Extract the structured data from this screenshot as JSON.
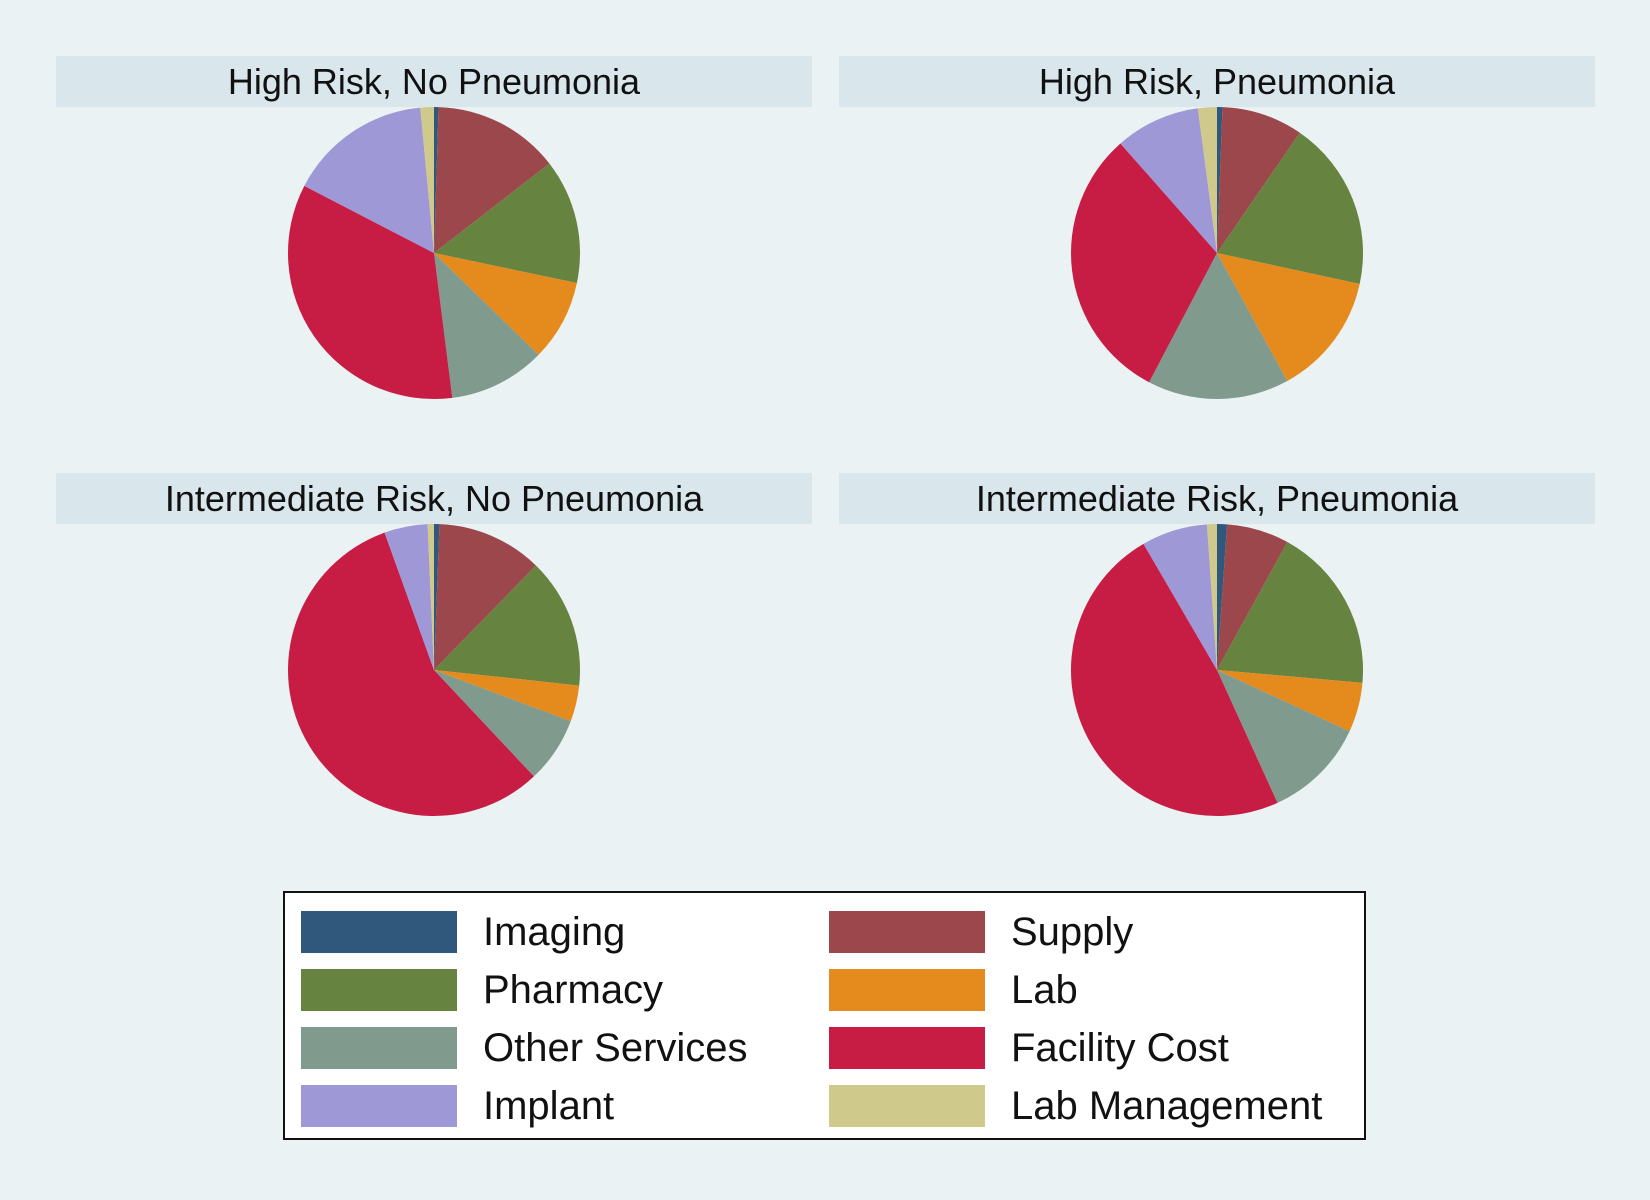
{
  "chart_data": [
    {
      "type": "pie",
      "title": "High Risk, No Pneumonia",
      "slices": [
        {
          "label": "Imaging",
          "value": 0.5
        },
        {
          "label": "Supply",
          "value": 14.0
        },
        {
          "label": "Pharmacy",
          "value": 13.8
        },
        {
          "label": "Lab",
          "value": 9.0
        },
        {
          "label": "Other Services",
          "value": 10.7
        },
        {
          "label": "Facility Cost",
          "value": 34.6
        },
        {
          "label": "Implant",
          "value": 15.9
        },
        {
          "label": "Lab Management",
          "value": 1.5
        }
      ]
    },
    {
      "type": "pie",
      "title": "High Risk, Pneumonia",
      "slices": [
        {
          "label": "Imaging",
          "value": 0.6
        },
        {
          "label": "Supply",
          "value": 9.0
        },
        {
          "label": "Pharmacy",
          "value": 18.8
        },
        {
          "label": "Lab",
          "value": 13.6
        },
        {
          "label": "Other Services",
          "value": 15.7
        },
        {
          "label": "Facility Cost",
          "value": 30.8
        },
        {
          "label": "Implant",
          "value": 9.4
        },
        {
          "label": "Lab Management",
          "value": 2.1
        }
      ]
    },
    {
      "type": "pie",
      "title": "Intermediate Risk, No Pneumonia",
      "slices": [
        {
          "label": "Imaging",
          "value": 0.6
        },
        {
          "label": "Supply",
          "value": 11.7
        },
        {
          "label": "Pharmacy",
          "value": 14.4
        },
        {
          "label": "Lab",
          "value": 4.0
        },
        {
          "label": "Other Services",
          "value": 7.3
        },
        {
          "label": "Facility Cost",
          "value": 56.5
        },
        {
          "label": "Implant",
          "value": 4.8
        },
        {
          "label": "Lab Management",
          "value": 0.7
        }
      ]
    },
    {
      "type": "pie",
      "title": "Intermediate Risk, Pneumonia",
      "slices": [
        {
          "label": "Imaging",
          "value": 1.1
        },
        {
          "label": "Supply",
          "value": 6.9
        },
        {
          "label": "Pharmacy",
          "value": 18.4
        },
        {
          "label": "Lab",
          "value": 5.5
        },
        {
          "label": "Other Services",
          "value": 11.3
        },
        {
          "label": "Facility Cost",
          "value": 48.4
        },
        {
          "label": "Implant",
          "value": 7.3
        },
        {
          "label": "Lab Management",
          "value": 1.1
        }
      ]
    }
  ],
  "legend": {
    "items": [
      {
        "label": "Imaging",
        "color": "#30587c"
      },
      {
        "label": "Supply",
        "color": "#9b474c"
      },
      {
        "label": "Pharmacy",
        "color": "#668340"
      },
      {
        "label": "Lab",
        "color": "#e58a1c"
      },
      {
        "label": "Other Services",
        "color": "#809b8e"
      },
      {
        "label": "Facility Cost",
        "color": "#c71d45"
      },
      {
        "label": "Implant",
        "color": "#9e98d6"
      },
      {
        "label": "Lab Management",
        "color": "#cfc98c"
      }
    ]
  }
}
